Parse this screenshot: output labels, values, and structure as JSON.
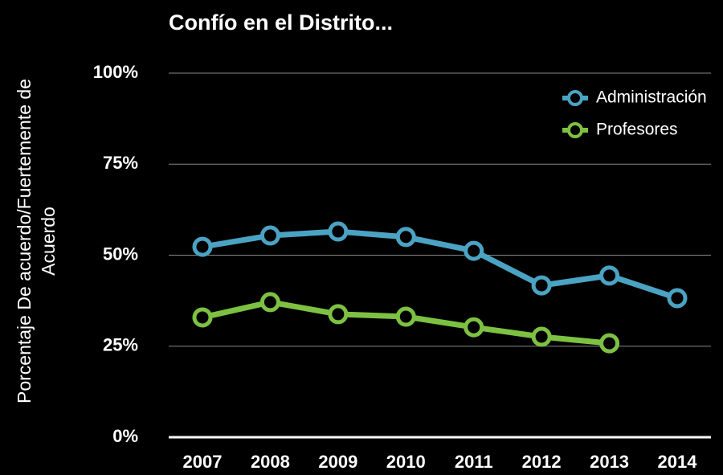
{
  "chart_data": {
    "type": "line",
    "title": "Confío en el Distrito...",
    "y_label": "Porcentaje De acuerdo/Fuertemente de Acuerdo",
    "categories": [
      "2007",
      "2008",
      "2009",
      "2010",
      "2011",
      "2012",
      "2013",
      "2014"
    ],
    "series": [
      {
        "name": "Administración",
        "color": "#4ba3c3",
        "values": [
          52.3,
          55.4,
          56.5,
          55,
          51.2,
          41.7,
          44.4,
          38.2
        ]
      },
      {
        "name": "Profesores",
        "color": "#7dc142",
        "values": [
          32.9,
          37.1,
          33.8,
          33.1,
          30.2,
          27.6,
          25.8,
          null
        ]
      }
    ],
    "ylim": [
      0,
      100
    ],
    "yticks": [
      {
        "value": 0,
        "label": "0%"
      },
      {
        "value": 25,
        "label": "25%"
      },
      {
        "value": 50,
        "label": "50%"
      },
      {
        "value": 75,
        "label": "75%"
      },
      {
        "value": 100,
        "label": "100%"
      }
    ],
    "grid": true,
    "legend": "upper right"
  }
}
